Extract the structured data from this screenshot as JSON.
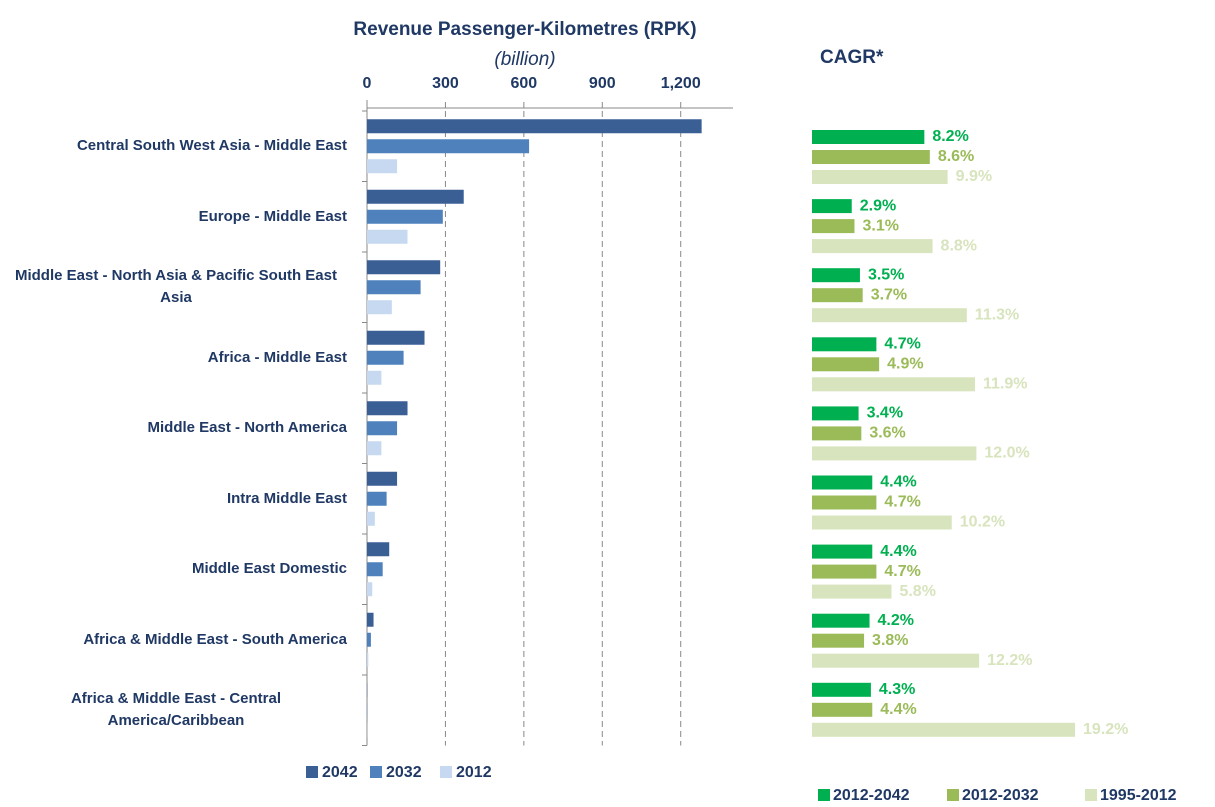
{
  "chart_data": [
    {
      "type": "hbar",
      "title": "Revenue Passenger-Kilometres (RPK)",
      "subtitle": "(billion)",
      "categories": [
        "Central South West Asia - Middle East",
        "Europe - Middle East",
        "Middle East - North Asia & Pacific South East Asia",
        "Africa - Middle East",
        "Middle East - North America",
        "Intra Middle East",
        "Middle East Domestic",
        "Africa & Middle East - South America",
        "Africa & Middle East - Central America/Caribbean"
      ],
      "series": [
        {
          "name": "2042",
          "color": "#3a5f95",
          "values": [
            1280,
            370,
            280,
            220,
            155,
            115,
            85,
            25,
            1
          ]
        },
        {
          "name": "2032",
          "color": "#4f81bd",
          "values": [
            620,
            290,
            205,
            140,
            115,
            75,
            60,
            15,
            1
          ]
        },
        {
          "name": "2012",
          "color": "#c6d9f1",
          "values": [
            115,
            155,
            95,
            55,
            55,
            30,
            20,
            5,
            0.5
          ]
        }
      ],
      "xlim": [
        0,
        1400
      ],
      "xticks": [
        0,
        300,
        600,
        900,
        {
          "value": 1200,
          "label": "1,200"
        }
      ],
      "grid": true
    },
    {
      "type": "hbar-labeled",
      "title": "CAGR*",
      "series": [
        {
          "name": "2012-2042",
          "color": "#00b050",
          "values": [
            8.2,
            2.9,
            3.5,
            4.7,
            3.4,
            4.4,
            4.4,
            4.2,
            4.3
          ],
          "value_labels": [
            "8.2%",
            "2.9%",
            "3.5%",
            "4.7%",
            "3.4%",
            "4.4%",
            "4.4%",
            "4.2%",
            "4.3%"
          ]
        },
        {
          "name": "2012-2032",
          "color": "#9bbb59",
          "values": [
            8.6,
            3.1,
            3.7,
            4.9,
            3.6,
            4.7,
            4.7,
            3.8,
            4.4
          ],
          "value_labels": [
            "8.6%",
            "3.1%",
            "3.7%",
            "4.9%",
            "3.6%",
            "4.7%",
            "4.7%",
            "3.8%",
            "4.4%"
          ]
        },
        {
          "name": "1995-2012",
          "color": "#d7e4bd",
          "values": [
            9.9,
            8.8,
            11.3,
            11.9,
            12.0,
            10.2,
            5.8,
            12.2,
            19.2
          ],
          "value_labels": [
            "9.9%",
            "8.8%",
            "11.3%",
            "11.9%",
            "12.0%",
            "10.2%",
            "5.8%",
            "12.2%",
            "19.2%"
          ]
        }
      ]
    }
  ]
}
